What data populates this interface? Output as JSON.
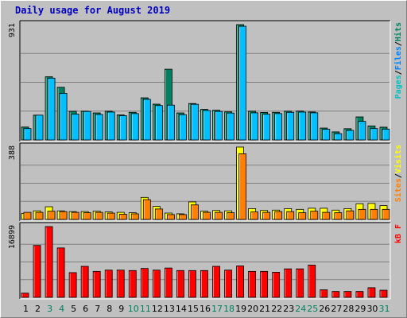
{
  "chart_data": {
    "type": "bar",
    "title": "Daily usage for August 2019",
    "days": [
      "1",
      "2",
      "3",
      "4",
      "5",
      "6",
      "7",
      "8",
      "9",
      "10",
      "11",
      "12",
      "13",
      "14",
      "15",
      "16",
      "17",
      "18",
      "19",
      "20",
      "21",
      "22",
      "23",
      "24",
      "25",
      "26",
      "27",
      "28",
      "29",
      "30",
      "31"
    ],
    "weekend_days": [
      "3",
      "4",
      "10",
      "11",
      "17",
      "18",
      "24",
      "25",
      "31"
    ],
    "panels": [
      {
        "max_label": "931",
        "ymax": 931,
        "legend": [
          "Pages",
          "Files",
          "Hits"
        ],
        "series": [
          {
            "name": "Hits",
            "color": "#008060",
            "values": [
              104,
              200,
              510,
              425,
              231,
              232,
              218,
              232,
              202,
              223,
              340,
              289,
              571,
              218,
              294,
              247,
              240,
              227,
              931,
              232,
              222,
              223,
              232,
              233,
              226,
              96,
              65,
              91,
              186,
              113,
              103
            ]
          },
          {
            "name": "Files",
            "color": "#00c0ff",
            "values": [
              92,
              200,
              499,
              376,
              209,
              230,
              206,
              225,
              196,
              213,
              328,
              278,
              281,
              204,
              288,
              238,
              230,
              217,
              918,
              219,
              208,
              213,
              223,
              225,
              219,
              86,
              51,
              77,
              150,
              92,
              87
            ]
          }
        ]
      },
      {
        "max_label": "388",
        "ymax": 388,
        "legend": [
          "Sites",
          "Visits"
        ],
        "series": [
          {
            "name": "Visits",
            "color": "#ffff00",
            "values": [
              32,
              46,
              68,
              46,
              42,
              42,
              44,
              40,
              38,
              36,
              118,
              70,
              34,
              30,
              94,
              44,
              48,
              46,
              388,
              58,
              48,
              50,
              58,
              54,
              60,
              60,
              50,
              58,
              84,
              86,
              74
            ]
          },
          {
            "name": "Sites",
            "color": "#ff8000",
            "values": [
              38,
              38,
              44,
              42,
              38,
              36,
              38,
              34,
              28,
              30,
              106,
              56,
              26,
              26,
              78,
              38,
              38,
              36,
              352,
              40,
              38,
              42,
              42,
              36,
              44,
              38,
              36,
              46,
              54,
              54,
              54
            ]
          }
        ]
      },
      {
        "max_label": "16899",
        "ymax": 16899,
        "legend": [
          "kB F"
        ],
        "series": [
          {
            "name": "kB F",
            "color": "#ff0000",
            "values": [
              1000,
              12400,
              16899,
              11800,
              5900,
              7400,
              6200,
              6500,
              6500,
              6400,
              6900,
              6500,
              7000,
              6400,
              6400,
              6400,
              7400,
              6500,
              7500,
              6200,
              6200,
              6000,
              6800,
              6800,
              7700,
              1800,
              1400,
              1400,
              1400,
              2300,
              1700
            ]
          }
        ]
      }
    ]
  }
}
